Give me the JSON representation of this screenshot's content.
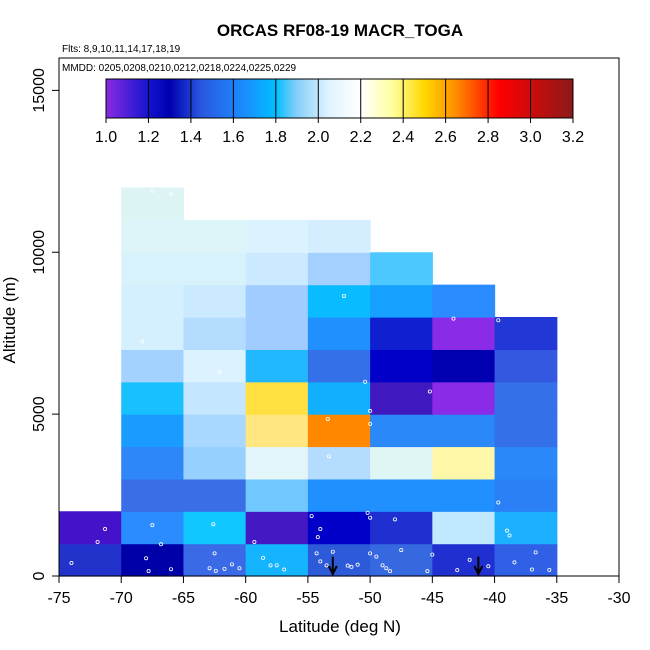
{
  "chart_data": {
    "type": "heatmap",
    "title": "ORCAS RF08-19 MACR_TOGA",
    "flights_note": "Flts: 8,9,10,11,14,17,18,19",
    "dates_note": "MMDD: 0205,0208,0210,0212,0218,0224,0225,0229",
    "xlabel": "Latitude (deg N)",
    "ylabel": "Altitude (m)",
    "xlim": [
      -75,
      -30
    ],
    "ylim": [
      0,
      16000
    ],
    "x_ticks": [
      -75,
      -70,
      -65,
      -60,
      -55,
      -50,
      -45,
      -40,
      -35,
      -30
    ],
    "y_ticks": [
      0,
      5000,
      10000,
      15000
    ],
    "colorbar": {
      "min": 1.0,
      "max": 3.2,
      "ticks": [
        "1.0",
        "1.2",
        "1.4",
        "1.6",
        "1.8",
        "2.0",
        "2.2",
        "2.4",
        "2.6",
        "2.8",
        "3.0",
        "3.2"
      ],
      "stops": [
        {
          "v": 1.0,
          "c": "#8a2be2"
        },
        {
          "v": 1.2,
          "c": "#1414d0"
        },
        {
          "v": 1.3,
          "c": "#0000b0"
        },
        {
          "v": 1.45,
          "c": "#2a58e0"
        },
        {
          "v": 1.65,
          "c": "#1a8cff"
        },
        {
          "v": 1.8,
          "c": "#00bfff"
        },
        {
          "v": 1.9,
          "c": "#87cefa"
        },
        {
          "v": 2.05,
          "c": "#e0f4ff"
        },
        {
          "v": 2.2,
          "c": "#ffffff"
        },
        {
          "v": 2.35,
          "c": "#ffffa0"
        },
        {
          "v": 2.5,
          "c": "#ffd700"
        },
        {
          "v": 2.65,
          "c": "#ff8c00"
        },
        {
          "v": 2.85,
          "c": "#ff0000"
        },
        {
          "v": 3.2,
          "c": "#8b1a1a"
        }
      ]
    },
    "cells": [
      {
        "lat": -75,
        "alt": 0,
        "v": 1.25,
        "c": "#2233cc"
      },
      {
        "lat": -70,
        "alt": 0,
        "v": 1.15,
        "c": "#0000a8"
      },
      {
        "lat": -65,
        "alt": 0,
        "v": 1.45,
        "c": "#3a6ae6"
      },
      {
        "lat": -60,
        "alt": 0,
        "v": 1.75,
        "c": "#14b4ff"
      },
      {
        "lat": -55,
        "alt": 0,
        "v": 1.4,
        "c": "#2c5ad8"
      },
      {
        "lat": -50,
        "alt": 0,
        "v": 1.45,
        "c": "#3668e0"
      },
      {
        "lat": -45,
        "alt": 0,
        "v": 1.25,
        "c": "#2030d0"
      },
      {
        "lat": -40,
        "alt": 0,
        "v": 1.45,
        "c": "#3060e6"
      },
      {
        "lat": -75,
        "alt": 1000,
        "v": 1.05,
        "c": "#4412c8"
      },
      {
        "lat": -70,
        "alt": 1000,
        "v": 1.6,
        "c": "#2a8cff"
      },
      {
        "lat": -65,
        "alt": 1000,
        "v": 1.8,
        "c": "#10c8ff"
      },
      {
        "lat": -60,
        "alt": 1000,
        "v": 1.05,
        "c": "#4418c4"
      },
      {
        "lat": -55,
        "alt": 1000,
        "v": 1.2,
        "c": "#0000c8"
      },
      {
        "lat": -50,
        "alt": 1000,
        "v": 1.25,
        "c": "#2030d0"
      },
      {
        "lat": -45,
        "alt": 1000,
        "v": 2.0,
        "c": "#c0e8ff"
      },
      {
        "lat": -40,
        "alt": 1000,
        "v": 1.75,
        "c": "#1cb0ff"
      },
      {
        "lat": -70,
        "alt": 2000,
        "v": 1.45,
        "c": "#3a6ee6"
      },
      {
        "lat": -65,
        "alt": 2000,
        "v": 1.45,
        "c": "#3a6ee6"
      },
      {
        "lat": -60,
        "alt": 2000,
        "v": 1.85,
        "c": "#70c8ff"
      },
      {
        "lat": -55,
        "alt": 2000,
        "v": 1.6,
        "c": "#2090ff"
      },
      {
        "lat": -50,
        "alt": 2000,
        "v": 1.6,
        "c": "#2090ff"
      },
      {
        "lat": -45,
        "alt": 2000,
        "v": 1.6,
        "c": "#2090ff"
      },
      {
        "lat": -40,
        "alt": 2000,
        "v": 1.55,
        "c": "#2a80f4"
      },
      {
        "lat": -70,
        "alt": 3000,
        "v": 1.55,
        "c": "#2f86f6"
      },
      {
        "lat": -65,
        "alt": 3000,
        "v": 1.9,
        "c": "#96d0ff"
      },
      {
        "lat": -60,
        "alt": 3000,
        "v": 2.1,
        "c": "#e2f6fa"
      },
      {
        "lat": -55,
        "alt": 3000,
        "v": 1.95,
        "c": "#b4dcff"
      },
      {
        "lat": -50,
        "alt": 3000,
        "v": 2.1,
        "c": "#e0f6f4"
      },
      {
        "lat": -45,
        "alt": 3000,
        "v": 2.35,
        "c": "#fff8a8"
      },
      {
        "lat": -40,
        "alt": 3000,
        "v": 1.6,
        "c": "#2a88f8"
      },
      {
        "lat": -70,
        "alt": 4000,
        "v": 1.65,
        "c": "#1a9cff"
      },
      {
        "lat": -65,
        "alt": 4000,
        "v": 1.95,
        "c": "#a8d8ff"
      },
      {
        "lat": -60,
        "alt": 4000,
        "v": 2.4,
        "c": "#ffe680"
      },
      {
        "lat": -55,
        "alt": 4000,
        "v": 2.65,
        "c": "#ff8800"
      },
      {
        "lat": -50,
        "alt": 4000,
        "v": 1.6,
        "c": "#2a88f8"
      },
      {
        "lat": -45,
        "alt": 4000,
        "v": 1.6,
        "c": "#2a88f8"
      },
      {
        "lat": -40,
        "alt": 4000,
        "v": 1.5,
        "c": "#3470e8"
      },
      {
        "lat": -70,
        "alt": 5000,
        "v": 1.8,
        "c": "#18c0ff"
      },
      {
        "lat": -65,
        "alt": 5000,
        "v": 2.0,
        "c": "#c4e6ff"
      },
      {
        "lat": -60,
        "alt": 5000,
        "v": 2.5,
        "c": "#ffe040"
      },
      {
        "lat": -55,
        "alt": 5000,
        "v": 1.75,
        "c": "#10b0ff"
      },
      {
        "lat": -50,
        "alt": 5000,
        "v": 1.05,
        "c": "#4018c0"
      },
      {
        "lat": -45,
        "alt": 5000,
        "v": 1.0,
        "c": "#8a2be8"
      },
      {
        "lat": -40,
        "alt": 5000,
        "v": 1.5,
        "c": "#3470e8"
      },
      {
        "lat": -70,
        "alt": 6000,
        "v": 1.9,
        "c": "#a4d2ff"
      },
      {
        "lat": -65,
        "alt": 6000,
        "v": 2.05,
        "c": "#dcf2ff"
      },
      {
        "lat": -60,
        "alt": 6000,
        "v": 1.75,
        "c": "#22b8ff"
      },
      {
        "lat": -55,
        "alt": 6000,
        "v": 1.5,
        "c": "#3470e8"
      },
      {
        "lat": -50,
        "alt": 6000,
        "v": 1.2,
        "c": "#0000c8"
      },
      {
        "lat": -45,
        "alt": 6000,
        "v": 1.25,
        "c": "#0000b0"
      },
      {
        "lat": -40,
        "alt": 6000,
        "v": 1.45,
        "c": "#3458e0"
      },
      {
        "lat": -70,
        "alt": 7000,
        "v": 2.05,
        "c": "#d4f0ff"
      },
      {
        "lat": -65,
        "alt": 7000,
        "v": 1.95,
        "c": "#b4dcff"
      },
      {
        "lat": -60,
        "alt": 7000,
        "v": 1.9,
        "c": "#a0ccff"
      },
      {
        "lat": -55,
        "alt": 7000,
        "v": 1.6,
        "c": "#2090ff"
      },
      {
        "lat": -50,
        "alt": 7000,
        "v": 1.25,
        "c": "#1020d0"
      },
      {
        "lat": -45,
        "alt": 7000,
        "v": 1.0,
        "c": "#8a2be8"
      },
      {
        "lat": -40,
        "alt": 7000,
        "v": 1.3,
        "c": "#2238d6"
      },
      {
        "lat": -70,
        "alt": 8000,
        "v": 2.05,
        "c": "#d4f0ff"
      },
      {
        "lat": -65,
        "alt": 8000,
        "v": 2.0,
        "c": "#cceaff"
      },
      {
        "lat": -60,
        "alt": 8000,
        "v": 1.9,
        "c": "#a0ccff"
      },
      {
        "lat": -55,
        "alt": 8000,
        "v": 1.8,
        "c": "#08bcff"
      },
      {
        "lat": -50,
        "alt": 8000,
        "v": 1.65,
        "c": "#16a0ff"
      },
      {
        "lat": -45,
        "alt": 8000,
        "v": 1.6,
        "c": "#2a8cff"
      },
      {
        "lat": -70,
        "alt": 9000,
        "v": 2.05,
        "c": "#d8f2fc"
      },
      {
        "lat": -65,
        "alt": 9000,
        "v": 2.05,
        "c": "#d8f2fc"
      },
      {
        "lat": -60,
        "alt": 9000,
        "v": 2.0,
        "c": "#cceaff"
      },
      {
        "lat": -55,
        "alt": 9000,
        "v": 1.9,
        "c": "#a4d0ff"
      },
      {
        "lat": -50,
        "alt": 9000,
        "v": 1.75,
        "c": "#4cc8ff"
      },
      {
        "lat": -70,
        "alt": 10000,
        "v": 2.1,
        "c": "#ddf4f8"
      },
      {
        "lat": -65,
        "alt": 10000,
        "v": 2.1,
        "c": "#ddf4f8"
      },
      {
        "lat": -60,
        "alt": 10000,
        "v": 2.05,
        "c": "#dcf2ff"
      },
      {
        "lat": -55,
        "alt": 10000,
        "v": 2.05,
        "c": "#d4eeff"
      },
      {
        "lat": -70,
        "alt": 11000,
        "v": 2.1,
        "c": "#ddf4f4"
      }
    ],
    "samples": [
      [
        -71.3,
        1450
      ],
      [
        -67.5,
        1570
      ],
      [
        -66.8,
        980
      ],
      [
        -68.0,
        550
      ],
      [
        -66.0,
        210
      ],
      [
        -67.8,
        150
      ],
      [
        -62.6,
        1600
      ],
      [
        -62.5,
        700
      ],
      [
        -62.9,
        240
      ],
      [
        -62.4,
        160
      ],
      [
        -61.7,
        220
      ],
      [
        -61.1,
        360
      ],
      [
        -60.5,
        240
      ],
      [
        -59.3,
        1050
      ],
      [
        -58.6,
        560
      ],
      [
        -58.0,
        330
      ],
      [
        -57.5,
        330
      ],
      [
        -56.9,
        200
      ],
      [
        -54.7,
        1850
      ],
      [
        -54.0,
        1450
      ],
      [
        -54.2,
        1200
      ],
      [
        -54.3,
        700
      ],
      [
        -54.0,
        450
      ],
      [
        -53.5,
        330
      ],
      [
        -53.0,
        750
      ],
      [
        -51.8,
        320
      ],
      [
        -51.5,
        280
      ],
      [
        -51.0,
        350
      ],
      [
        -50.2,
        1950
      ],
      [
        -50.0,
        1800
      ],
      [
        -50.0,
        700
      ],
      [
        -49.5,
        600
      ],
      [
        -49.0,
        330
      ],
      [
        -48.7,
        240
      ],
      [
        -48.4,
        150
      ],
      [
        -48.0,
        1750
      ],
      [
        -47.5,
        800
      ],
      [
        -45.0,
        660
      ],
      [
        -45.4,
        150
      ],
      [
        -43.0,
        180
      ],
      [
        -39.0,
        1400
      ],
      [
        -38.8,
        1250
      ],
      [
        -38.4,
        420
      ],
      [
        -37.0,
        200
      ],
      [
        -36.7,
        730
      ],
      [
        -35.6,
        190
      ],
      [
        -39.7,
        2270
      ],
      [
        -42.0,
        500
      ],
      [
        -40.5,
        300
      ],
      [
        -71.9,
        1050
      ],
      [
        -74.0,
        400
      ],
      [
        -67.5,
        11900
      ],
      [
        -66.0,
        11800
      ],
      [
        -68.3,
        7250
      ],
      [
        -62.1,
        6300
      ],
      [
        -52.1,
        8650
      ],
      [
        -50.4,
        6000
      ],
      [
        -50.0,
        5100
      ],
      [
        -50.0,
        4700
      ],
      [
        -53.4,
        4850
      ],
      [
        -53.3,
        3700
      ],
      [
        -45.2,
        5700
      ],
      [
        -43.3,
        7950
      ],
      [
        -39.7,
        7900
      ]
    ],
    "arrows": [
      {
        "lat": -53,
        "alt": 600
      },
      {
        "lat": -41.3,
        "alt": 600
      }
    ]
  }
}
